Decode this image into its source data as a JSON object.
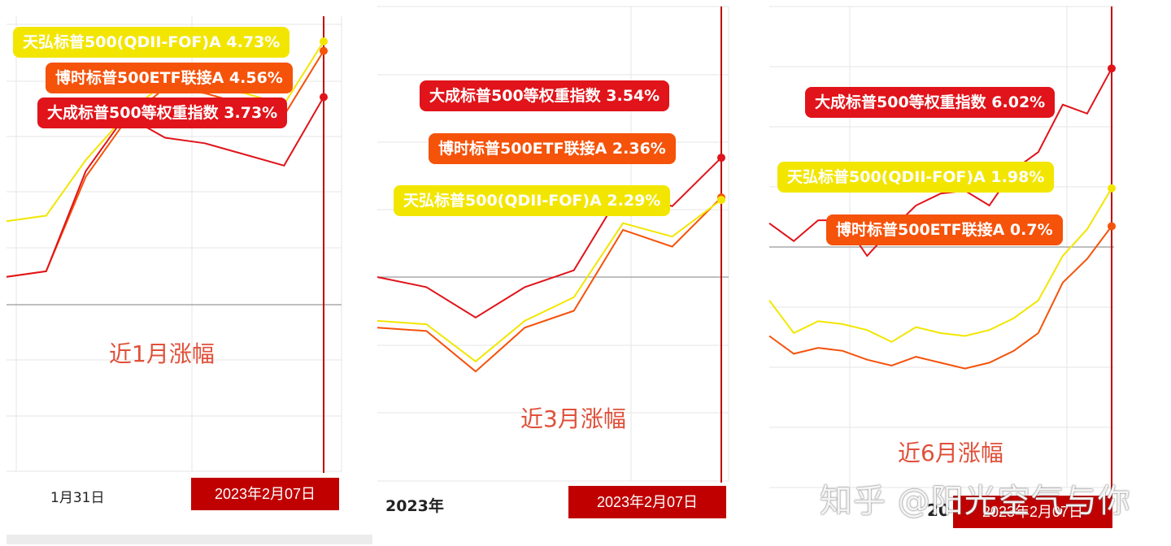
{
  "colors": {
    "dacheng": "#e0141a",
    "boshi": "#f5520a",
    "tianhong": "#f2e600",
    "axis_red": "#c00000",
    "grid": "#e6e6e6",
    "baseline": "#999999"
  },
  "chart_data": [
    {
      "type": "line",
      "title": "近1月涨幅",
      "x_label_left": "1月31日",
      "x_label_right": "2023年2月07日",
      "series": [
        {
          "name": "天弘标普500(QDII-FOF)A",
          "key": "tianhong",
          "color": "#f2e600",
          "final": "4.73%",
          "values": [
            1.5,
            1.6,
            2.6,
            3.4,
            4.0,
            3.9,
            3.8,
            3.6,
            4.73
          ]
        },
        {
          "name": "博时标普500ETF联接A",
          "key": "boshi",
          "color": "#f5520a",
          "final": "4.56%",
          "values": [
            0.5,
            0.6,
            2.3,
            3.3,
            3.9,
            3.8,
            3.6,
            3.4,
            4.56
          ]
        },
        {
          "name": "大成标普500等权重指数",
          "key": "dacheng",
          "color": "#e0141a",
          "final": "3.73%",
          "values": [
            0.5,
            0.6,
            2.4,
            3.4,
            3.0,
            2.9,
            2.7,
            2.5,
            3.73
          ]
        }
      ]
    },
    {
      "type": "line",
      "title": "近3月涨幅",
      "x_label_left": "2023年",
      "x_label_right": "2023年2月07日",
      "series": [
        {
          "name": "大成标普500等权重指数",
          "key": "dacheng",
          "color": "#e0141a",
          "final": "3.54%",
          "values": [
            0.0,
            -0.3,
            -1.2,
            -0.3,
            0.2,
            2.6,
            2.1,
            3.54
          ]
        },
        {
          "name": "博时标普500ETF联接A",
          "key": "boshi",
          "color": "#f5520a",
          "final": "2.36%",
          "values": [
            -1.5,
            -1.6,
            -2.8,
            -1.5,
            -1.0,
            1.4,
            0.9,
            2.36
          ]
        },
        {
          "name": "天弘标普500(QDII-FOF)A",
          "key": "tianhong",
          "color": "#f2e600",
          "final": "2.29%",
          "values": [
            -1.3,
            -1.4,
            -2.5,
            -1.3,
            -0.6,
            1.6,
            1.2,
            2.29
          ]
        }
      ]
    },
    {
      "type": "line",
      "title": "近6月涨幅",
      "x_label_left": "20",
      "x_label_right": "2023年2月07日",
      "series": [
        {
          "name": "大成标普500等权重指数",
          "key": "dacheng",
          "color": "#e0141a",
          "final": "6.02%",
          "values": [
            0.8,
            0.2,
            0.9,
            0.9,
            -0.3,
            0.6,
            1.4,
            1.8,
            1.9,
            1.4,
            2.6,
            3.2,
            4.8,
            4.5,
            6.02
          ]
        },
        {
          "name": "天弘标普500(QDII-FOF)A",
          "key": "tianhong",
          "color": "#f2e600",
          "final": "1.98%",
          "values": [
            -1.8,
            -2.9,
            -2.5,
            -2.6,
            -2.8,
            -3.2,
            -2.7,
            -2.9,
            -3.0,
            -2.8,
            -2.4,
            -1.8,
            -0.3,
            0.6,
            1.98
          ]
        },
        {
          "name": "博时标普500ETF联接A",
          "key": "boshi",
          "color": "#f5520a",
          "final": "0.7%",
          "values": [
            -3.0,
            -3.6,
            -3.4,
            -3.5,
            -3.8,
            -4.0,
            -3.7,
            -3.9,
            -4.1,
            -3.9,
            -3.5,
            -2.9,
            -1.2,
            -0.4,
            0.7
          ]
        }
      ]
    }
  ],
  "watermark": "知乎 @阳光空气与你"
}
